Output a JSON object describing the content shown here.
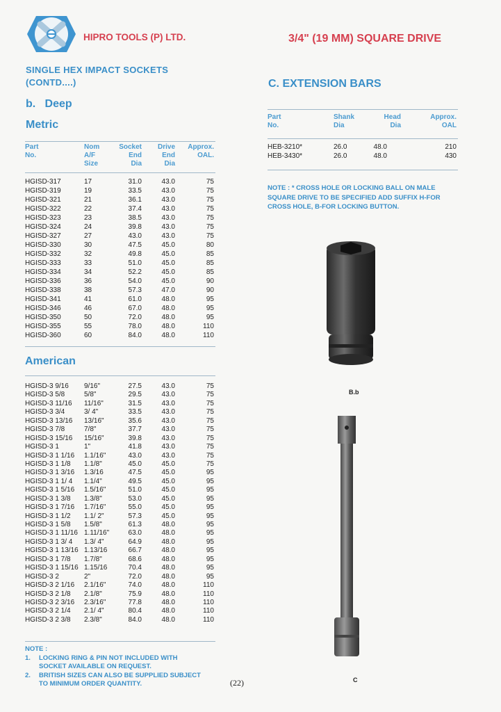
{
  "header": {
    "company": "HIPRO TOOLS (P) LTD.",
    "drive": "3/4\" (19 MM) SQUARE DRIVE",
    "logo": "hex-socket-logo"
  },
  "left": {
    "title_line1": "SINGLE HEX IMPACT SOCKETS",
    "title_line2": "(CONTD....)",
    "subtitle": "b.   Deep",
    "metric_label": "Metric",
    "american_label": "American",
    "headers": [
      [
        "Part",
        "No."
      ],
      [
        "Nom",
        "A/F",
        "Size"
      ],
      [
        "Socket",
        "End",
        "Dia"
      ],
      [
        "Drive",
        "End",
        "Dia"
      ],
      [
        "Approx.",
        "OAL."
      ]
    ],
    "metric_rows": [
      [
        "HGISD-317",
        "17",
        "31.0",
        "43.0",
        "75"
      ],
      [
        "HGISD-319",
        "19",
        "33.5",
        "43.0",
        "75"
      ],
      [
        "HGISD-321",
        "21",
        "36.1",
        "43.0",
        "75"
      ],
      [
        "HGISD-322",
        "22",
        "37.4",
        "43.0",
        "75"
      ],
      [
        "HGISD-323",
        "23",
        "38.5",
        "43.0",
        "75"
      ],
      [
        "HGISD-324",
        "24",
        "39.8",
        "43.0",
        "75"
      ],
      [
        "HGISD-327",
        "27",
        "43.0",
        "43.0",
        "75"
      ],
      [
        "HGISD-330",
        "30",
        "47.5",
        "45.0",
        "80"
      ],
      [
        "HGISD-332",
        "32",
        "49.8",
        "45.0",
        "85"
      ],
      [
        "HGISD-333",
        "33",
        "51.0",
        "45.0",
        "85"
      ],
      [
        "HGISD-334",
        "34",
        "52.2",
        "45.0",
        "85"
      ],
      [
        "HGISD-336",
        "36",
        "54.0",
        "45.0",
        "90"
      ],
      [
        "HGISD-338",
        "38",
        "57.3",
        "47.0",
        "90"
      ],
      [
        "HGISD-341",
        "41",
        "61.0",
        "48.0",
        "95"
      ],
      [
        "HGISD-346",
        "46",
        "67.0",
        "48.0",
        "95"
      ],
      [
        "HGISD-350",
        "50",
        "72.0",
        "48.0",
        "95"
      ],
      [
        "HGISD-355",
        "55",
        "78.0",
        "48.0",
        "110"
      ],
      [
        "HGISD-360",
        "60",
        "84.0",
        "48.0",
        "110"
      ]
    ],
    "american_rows": [
      [
        "HGISD-3 9/16",
        "9/16\"",
        "27.5",
        "43.0",
        "75"
      ],
      [
        "HGISD-3 5/8",
        "5/8\"",
        "29.5",
        "43.0",
        "75"
      ],
      [
        "HGISD-3 11/16",
        "11/16\"",
        "31.5",
        "43.0",
        "75"
      ],
      [
        "HGISD-3 3/4",
        "3/ 4\"",
        "33.5",
        "43.0",
        "75"
      ],
      [
        "HGISD-3 13/16",
        "13/16\"",
        "35.6",
        "43.0",
        "75"
      ],
      [
        "HGISD-3 7/8",
        "7/8\"",
        "37.7",
        "43.0",
        "75"
      ],
      [
        "HGISD-3 15/16",
        "15/16\"",
        "39.8",
        "43.0",
        "75"
      ],
      [
        "HGISD-3 1",
        "1\"",
        "41.8",
        "43.0",
        "75"
      ],
      [
        "HGISD-3 1 1/16",
        "1.1/16\"",
        "43.0",
        "43.0",
        "75"
      ],
      [
        "HGISD-3 1 1/8",
        "1.1/8\"",
        "45.0",
        "45.0",
        "75"
      ],
      [
        "HGISD-3 1 3/16",
        "1.3/16",
        "47.5",
        "45.0",
        "95"
      ],
      [
        "HGISD-3 1 1/ 4",
        "1.1/4\"",
        "49.5",
        "45.0",
        "95"
      ],
      [
        "HGISD-3 1 5/16",
        "1.5/16\"",
        "51.0",
        "45.0",
        "95"
      ],
      [
        "HGISD-3 1 3/8",
        "1.3/8\"",
        "53.0",
        "45.0",
        "95"
      ],
      [
        "HGISD-3 1 7/16",
        "1.7/16\"",
        "55.0",
        "45.0",
        "95"
      ],
      [
        "HGISD-3 1 1/2",
        "1.1/ 2\"",
        "57.3",
        "45.0",
        "95"
      ],
      [
        "HGISD-3 1 5/8",
        "1.5/8\"",
        "61.3",
        "48.0",
        "95"
      ],
      [
        "HGISD-3 1 11/16",
        "1.11/16\"",
        "63.0",
        "48.0",
        "95"
      ],
      [
        "HGISD-3 1 3/ 4",
        "1.3/ 4\"",
        "64.9",
        "48.0",
        "95"
      ],
      [
        "HGISD-3 1 13/16",
        "1.13/16",
        "66.7",
        "48.0",
        "95"
      ],
      [
        "HGISD-3 1 7/8",
        "1.7/8\"",
        "68.6",
        "48.0",
        "95"
      ],
      [
        "HGISD-3 1 15/16",
        "1.15/16",
        "70.4",
        "48.0",
        "95"
      ],
      [
        "HGISD-3 2",
        "2\"",
        "72.0",
        "48.0",
        "95"
      ],
      [
        "HGISD-3 2 1/16",
        "2.1/16\"",
        "74.0",
        "48.0",
        "110"
      ],
      [
        "HGISD-3 2 1/8",
        "2.1/8\"",
        "75.9",
        "48.0",
        "110"
      ],
      [
        "HGISD-3 2  3/16",
        "2.3/16\"",
        "77.8",
        "48.0",
        "110"
      ],
      [
        "HGISD-3 2 1/4",
        "2.1/ 4\"",
        "80.4",
        "48.0",
        "110"
      ],
      [
        "HGISD-3 2 3/8",
        "2.3/8\"",
        "84.0",
        "48.0",
        "110"
      ]
    ],
    "note_title": "NOTE :",
    "notes": [
      {
        "num": "1.",
        "line1": "LOCKING RING & PIN NOT INCLUDED WITH",
        "line2": "SOCKET AVAILABLE ON REQUEST."
      },
      {
        "num": "2.",
        "line1": "BRITISH SIZES CAN ALSO BE SUPPLIED SUBJECT",
        "line2": "TO MINIMUM ORDER QUANTITY."
      }
    ]
  },
  "right": {
    "section_title": "C. EXTENSION BARS",
    "headers": [
      [
        "Part",
        "No."
      ],
      [
        "Shank",
        "Dia"
      ],
      [
        "Head",
        "Dia"
      ],
      [
        "Approx.",
        "OAL"
      ]
    ],
    "rows": [
      [
        "HEB-3210*",
        "26.0",
        "48.0",
        "210"
      ],
      [
        "HEB-3430*",
        "26.0",
        "48.0",
        "430"
      ]
    ],
    "note_lines": [
      "NOTE : *  CROSS HOLE OR LOCKING BALL ON MALE",
      "SQUARE DRIVE TO BE SPECIFIED ADD SUFFIX H-FOR",
      "CROSS HOLE, B-FOR LOCKING BUTTON."
    ],
    "caption_socket": "B.b",
    "caption_bar": "C"
  },
  "footer": {
    "page": "(22)"
  },
  "colors": {
    "blue": "#3a8fc8",
    "red": "#d6404f"
  }
}
